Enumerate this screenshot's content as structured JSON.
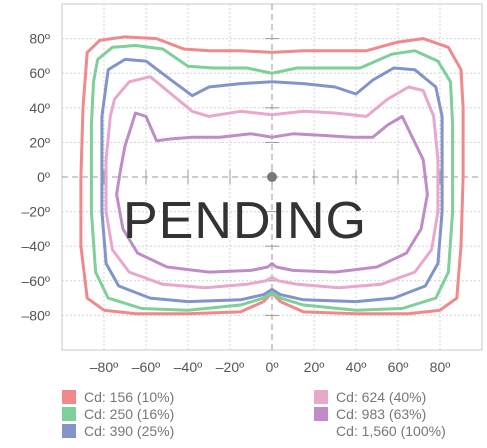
{
  "chart_data": {
    "type": "line",
    "subtype": "isocandela-diagram",
    "title": "",
    "xlabel": "",
    "ylabel": "",
    "xlim": [
      -100,
      100
    ],
    "ylim": [
      -100,
      100
    ],
    "xticks": [
      -80,
      -60,
      -40,
      -20,
      0,
      20,
      40,
      60,
      80
    ],
    "xtick_labels": [
      "–80º",
      "–60º",
      "–40º",
      "–20º",
      "0º",
      "20º",
      "40º",
      "60º",
      "80º"
    ],
    "yticks": [
      80,
      60,
      40,
      20,
      0,
      -20,
      -40,
      -60,
      -80
    ],
    "ytick_labels": [
      "80º",
      "60º",
      "40º",
      "20º",
      "0º",
      "–20º",
      "–40º",
      "–60º",
      "–80º"
    ],
    "grid": true,
    "legend_position": "bottom",
    "overlay_text": "PENDING",
    "center_marker": [
      0,
      0
    ],
    "series": [
      {
        "name": "Cd: 156 (10%)",
        "color": "#f08a8a",
        "points": [
          [
            -88,
            72
          ],
          [
            -82,
            79
          ],
          [
            -70,
            81
          ],
          [
            -55,
            80
          ],
          [
            -42,
            74
          ],
          [
            -30,
            73
          ],
          [
            -15,
            73
          ],
          [
            0,
            72
          ],
          [
            15,
            73
          ],
          [
            30,
            73
          ],
          [
            45,
            73
          ],
          [
            60,
            78
          ],
          [
            72,
            80
          ],
          [
            84,
            75
          ],
          [
            90,
            62
          ],
          [
            91,
            40
          ],
          [
            91,
            0
          ],
          [
            90,
            -40
          ],
          [
            88,
            -70
          ],
          [
            80,
            -77
          ],
          [
            65,
            -79
          ],
          [
            40,
            -79
          ],
          [
            15,
            -78
          ],
          [
            4,
            -72
          ],
          [
            0,
            -67
          ],
          [
            -4,
            -72
          ],
          [
            -15,
            -78
          ],
          [
            -40,
            -79
          ],
          [
            -65,
            -79
          ],
          [
            -80,
            -77
          ],
          [
            -88,
            -70
          ],
          [
            -91,
            -40
          ],
          [
            -91,
            0
          ],
          [
            -90,
            40
          ],
          [
            -88,
            72
          ]
        ]
      },
      {
        "name": "Cd: 250 (16%)",
        "color": "#7ecf98",
        "points": [
          [
            -83,
            68
          ],
          [
            -76,
            75
          ],
          [
            -65,
            76
          ],
          [
            -52,
            74
          ],
          [
            -40,
            64
          ],
          [
            -28,
            63
          ],
          [
            -12,
            63
          ],
          [
            0,
            60
          ],
          [
            12,
            63
          ],
          [
            28,
            63
          ],
          [
            42,
            63
          ],
          [
            57,
            71
          ],
          [
            68,
            73
          ],
          [
            79,
            67
          ],
          [
            85,
            55
          ],
          [
            86,
            30
          ],
          [
            86,
            -20
          ],
          [
            84,
            -55
          ],
          [
            78,
            -70
          ],
          [
            62,
            -76
          ],
          [
            40,
            -77
          ],
          [
            15,
            -74
          ],
          [
            4,
            -70
          ],
          [
            0,
            -67
          ],
          [
            -4,
            -70
          ],
          [
            -15,
            -74
          ],
          [
            -40,
            -77
          ],
          [
            -62,
            -76
          ],
          [
            -78,
            -70
          ],
          [
            -84,
            -55
          ],
          [
            -86,
            -20
          ],
          [
            -86,
            30
          ],
          [
            -85,
            55
          ],
          [
            -83,
            68
          ]
        ]
      },
      {
        "name": "Cd: 390 (25%)",
        "color": "#8294c9",
        "points": [
          [
            -78,
            62
          ],
          [
            -70,
            68
          ],
          [
            -60,
            67
          ],
          [
            -48,
            56
          ],
          [
            -38,
            47
          ],
          [
            -30,
            52
          ],
          [
            -15,
            54
          ],
          [
            0,
            55
          ],
          [
            15,
            54
          ],
          [
            30,
            52
          ],
          [
            40,
            48
          ],
          [
            48,
            56
          ],
          [
            58,
            63
          ],
          [
            68,
            62
          ],
          [
            78,
            52
          ],
          [
            81,
            35
          ],
          [
            81,
            -20
          ],
          [
            79,
            -50
          ],
          [
            73,
            -63
          ],
          [
            58,
            -70
          ],
          [
            40,
            -72
          ],
          [
            15,
            -71
          ],
          [
            4,
            -68
          ],
          [
            0,
            -65
          ],
          [
            -4,
            -68
          ],
          [
            -15,
            -71
          ],
          [
            -40,
            -72
          ],
          [
            -58,
            -70
          ],
          [
            -73,
            -63
          ],
          [
            -79,
            -50
          ],
          [
            -81,
            -20
          ],
          [
            -81,
            35
          ],
          [
            -78,
            62
          ]
        ]
      },
      {
        "name": "Cd: 624 (40%)",
        "color": "#e8a8cc",
        "points": [
          [
            -75,
            45
          ],
          [
            -68,
            55
          ],
          [
            -58,
            58
          ],
          [
            -48,
            48
          ],
          [
            -38,
            38
          ],
          [
            -30,
            35
          ],
          [
            -15,
            38
          ],
          [
            0,
            36
          ],
          [
            15,
            38
          ],
          [
            30,
            37
          ],
          [
            45,
            35
          ],
          [
            55,
            45
          ],
          [
            65,
            52
          ],
          [
            72,
            50
          ],
          [
            77,
            35
          ],
          [
            79,
            10
          ],
          [
            79,
            -20
          ],
          [
            76,
            -42
          ],
          [
            68,
            -55
          ],
          [
            52,
            -62
          ],
          [
            32,
            -64
          ],
          [
            12,
            -62
          ],
          [
            3,
            -60
          ],
          [
            0,
            -58
          ],
          [
            -3,
            -60
          ],
          [
            -12,
            -62
          ],
          [
            -32,
            -64
          ],
          [
            -52,
            -62
          ],
          [
            -68,
            -55
          ],
          [
            -76,
            -42
          ],
          [
            -79,
            -20
          ],
          [
            -79,
            10
          ],
          [
            -77,
            35
          ],
          [
            -75,
            45
          ]
        ]
      },
      {
        "name": "Cd: 983 (63%)",
        "color": "#c08cc8",
        "points": [
          [
            -70,
            18
          ],
          [
            -65,
            37
          ],
          [
            -60,
            35
          ],
          [
            -55,
            21
          ],
          [
            -48,
            22
          ],
          [
            -38,
            23
          ],
          [
            -25,
            23
          ],
          [
            -10,
            25
          ],
          [
            0,
            23
          ],
          [
            10,
            25
          ],
          [
            25,
            24
          ],
          [
            38,
            23
          ],
          [
            48,
            23
          ],
          [
            55,
            30
          ],
          [
            62,
            35
          ],
          [
            66,
            25
          ],
          [
            72,
            10
          ],
          [
            74,
            -10
          ],
          [
            71,
            -30
          ],
          [
            64,
            -44
          ],
          [
            50,
            -52
          ],
          [
            30,
            -55
          ],
          [
            10,
            -54
          ],
          [
            2,
            -52
          ],
          [
            0,
            -50
          ],
          [
            -2,
            -52
          ],
          [
            -10,
            -54
          ],
          [
            -30,
            -55
          ],
          [
            -50,
            -52
          ],
          [
            -64,
            -44
          ],
          [
            -71,
            -30
          ],
          [
            -74,
            -10
          ],
          [
            -72,
            5
          ],
          [
            -70,
            18
          ]
        ]
      },
      {
        "name": "Cd: 1,560 (100%)",
        "color": "#ffffff",
        "points": []
      }
    ]
  }
}
